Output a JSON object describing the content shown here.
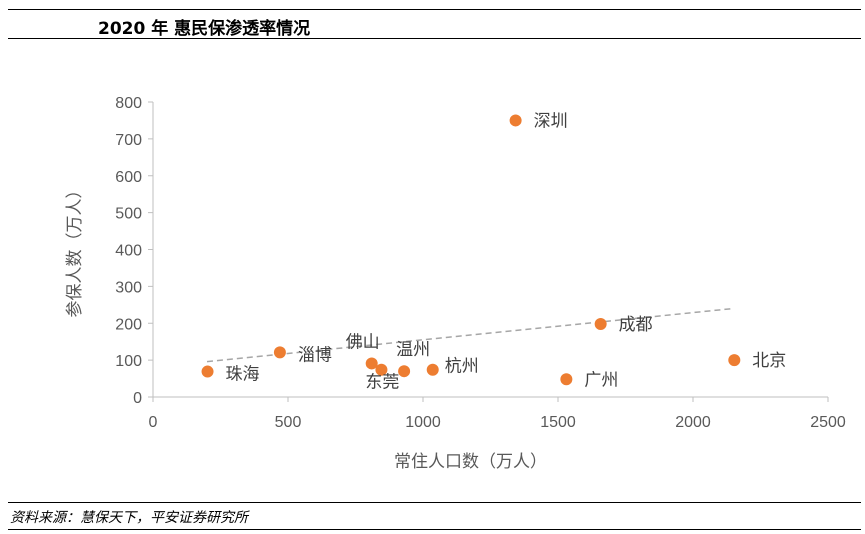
{
  "header": {
    "title": "2020 年 惠民保渗透率情况"
  },
  "footer": {
    "source": "资料来源：慧保天下，平安证券研究所"
  },
  "chart_data": {
    "type": "scatter",
    "xlabel": "常住人口数（万人）",
    "ylabel": "参保人数（万人）",
    "xlim": [
      0,
      2500
    ],
    "ylim": [
      0,
      800
    ],
    "xticks": [
      "0",
      "500",
      "1000",
      "1500",
      "2000",
      "2500"
    ],
    "yticks": [
      "0",
      "100",
      "200",
      "300",
      "400",
      "500",
      "600",
      "700",
      "800"
    ],
    "grid": false,
    "point_color": "#ED7D31",
    "trendline": {
      "type": "linear",
      "color": "#A6A6A6",
      "style": "dashed",
      "from": [
        200,
        96
      ],
      "to": [
        2150,
        240
      ]
    },
    "points": [
      {
        "label": "深圳",
        "x": 1343,
        "y": 750
      },
      {
        "label": "成都",
        "x": 1658,
        "y": 198
      },
      {
        "label": "北京",
        "x": 2153,
        "y": 100
      },
      {
        "label": "淄博",
        "x": 470,
        "y": 121
      },
      {
        "label": "佛山",
        "x": 810,
        "y": 91
      },
      {
        "label": "温州",
        "x": 930,
        "y": 70
      },
      {
        "label": "东莞",
        "x": 846,
        "y": 74
      },
      {
        "label": "杭州",
        "x": 1036,
        "y": 74
      },
      {
        "label": "珠海",
        "x": 202,
        "y": 69
      },
      {
        "label": "广州",
        "x": 1531,
        "y": 48
      }
    ]
  }
}
